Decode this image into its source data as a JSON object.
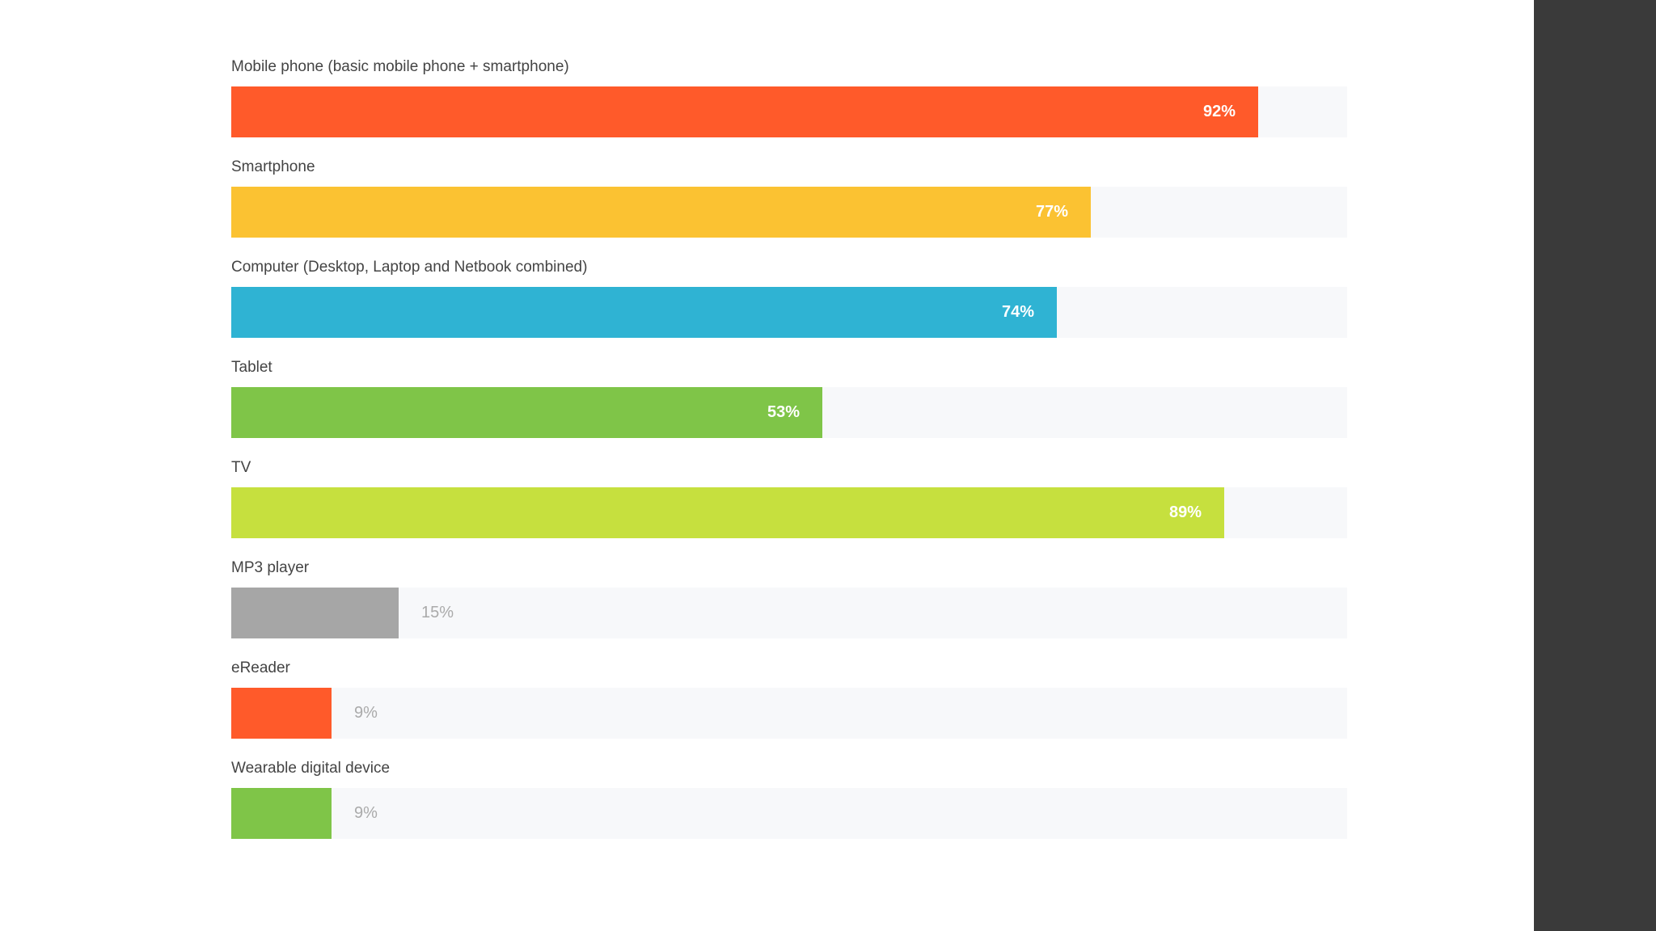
{
  "chart_data": {
    "type": "bar",
    "orientation": "horizontal",
    "xlim": [
      0,
      100
    ],
    "unit": "%",
    "categories": [
      "Mobile phone (basic mobile phone + smartphone)",
      "Smartphone",
      "Computer (Desktop, Laptop and Netbook combined)",
      "Tablet",
      "TV",
      "MP3 player",
      "eReader",
      "Wearable digital device"
    ],
    "values": [
      92,
      77,
      74,
      53,
      89,
      15,
      9,
      9
    ],
    "value_labels": [
      "92%",
      "77%",
      "74%",
      "53%",
      "89%",
      "15%",
      "9%",
      "9%"
    ],
    "colors": [
      "#ff5a2a",
      "#fbc232",
      "#2fb3d3",
      "#7fc548",
      "#c6e03e",
      "#a6a6a6",
      "#ff5a2a",
      "#7fc548"
    ],
    "title": "",
    "xlabel": "",
    "ylabel": "",
    "grid": false,
    "legend": "none"
  }
}
